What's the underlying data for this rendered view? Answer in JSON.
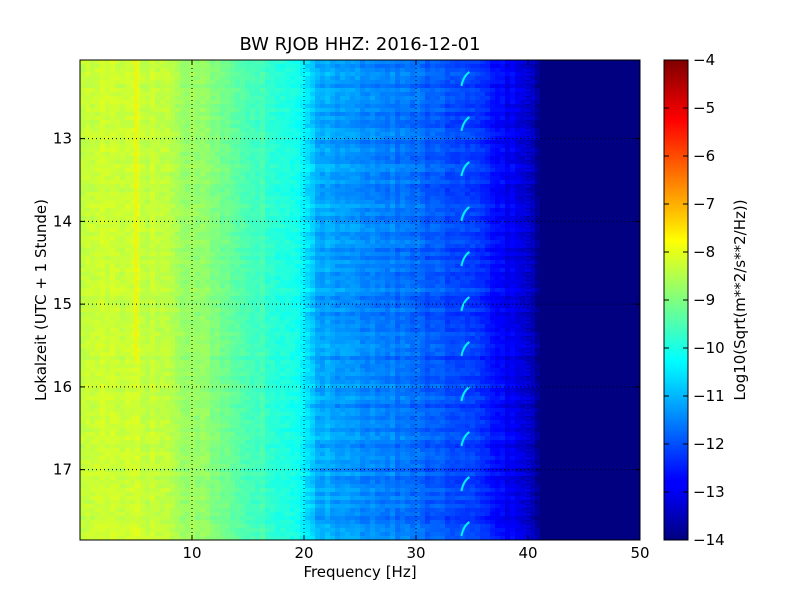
{
  "chart_data": {
    "type": "heatmap",
    "title": "BW RJOB HHZ: 2016-12-01",
    "xlabel": "Frequency [Hz]",
    "ylabel": "Lokalzeit (UTC + 1 Stunde)",
    "colorbar_label": "Log10(Sqrt(m**2/s**2/Hz))",
    "xlim": [
      0,
      50
    ],
    "ylim": [
      17.85,
      12.05
    ],
    "y_inverted": true,
    "x_ticks": [
      10,
      20,
      30,
      40,
      50
    ],
    "y_ticks": [
      13,
      14,
      15,
      16,
      17
    ],
    "colorbar_range": [
      -14,
      -4
    ],
    "colorbar_ticks": [
      -4,
      -5,
      -6,
      -7,
      -8,
      -9,
      -10,
      -11,
      -12,
      -13,
      -14
    ],
    "colormap": "jet",
    "grid": true,
    "grid_style": "dotted",
    "features": {
      "line_frequency_hz": 5,
      "arcs_frequency_hz": 34.5,
      "noise_floor_start_hz": 41,
      "noise_floor_value": -14
    },
    "spectrum_profile": {
      "frequency_hz": [
        0,
        2,
        5,
        8,
        12,
        16,
        20,
        21,
        25,
        30,
        35,
        38,
        40,
        41,
        50
      ],
      "log_amplitude": [
        -8.4,
        -8.3,
        -8.2,
        -8.5,
        -9.0,
        -9.6,
        -10.2,
        -11.0,
        -11.4,
        -11.7,
        -12.2,
        -12.8,
        -13.2,
        -14,
        -14
      ]
    }
  }
}
